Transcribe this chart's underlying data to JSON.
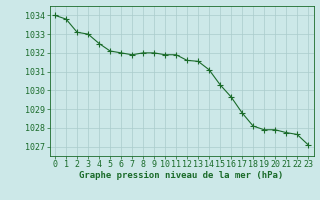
{
  "x": [
    0,
    1,
    2,
    3,
    4,
    5,
    6,
    7,
    8,
    9,
    10,
    11,
    12,
    13,
    14,
    15,
    16,
    17,
    18,
    19,
    20,
    21,
    22,
    23
  ],
  "y": [
    1034.0,
    1033.8,
    1033.1,
    1033.0,
    1032.5,
    1032.1,
    1032.0,
    1031.9,
    1032.0,
    1032.0,
    1031.9,
    1031.9,
    1031.6,
    1031.55,
    1031.1,
    1030.3,
    1029.65,
    1028.8,
    1028.1,
    1027.9,
    1027.9,
    1027.75,
    1027.65,
    1027.1
  ],
  "line_color": "#1a6b2a",
  "marker": "+",
  "marker_size": 4,
  "bg_color": "#cce8e8",
  "grid_color": "#aacccc",
  "xlabel": "Graphe pression niveau de la mer (hPa)",
  "xlabel_fontsize": 6.5,
  "tick_fontsize": 6.0,
  "ylim": [
    1026.5,
    1034.5
  ],
  "yticks": [
    1027,
    1028,
    1029,
    1030,
    1031,
    1032,
    1033,
    1034
  ],
  "xlim": [
    -0.5,
    23.5
  ],
  "xticks": [
    0,
    1,
    2,
    3,
    4,
    5,
    6,
    7,
    8,
    9,
    10,
    11,
    12,
    13,
    14,
    15,
    16,
    17,
    18,
    19,
    20,
    21,
    22,
    23
  ]
}
